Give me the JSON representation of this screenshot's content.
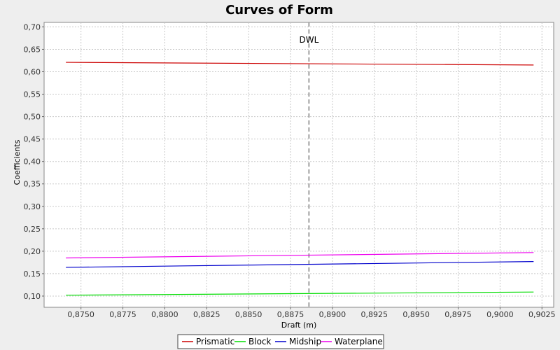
{
  "chart_data": {
    "type": "line",
    "title": "Curves of Form",
    "xlabel": "Draft (m)",
    "ylabel": "Coefficients",
    "xlim": [
      0.8728,
      0.9032
    ],
    "ylim": [
      0.075,
      0.71
    ],
    "x_ticks": [
      "0,8750",
      "0,8775",
      "0,8800",
      "0,8825",
      "0,8850",
      "0,8875",
      "0,8900",
      "0,8925",
      "0,8950",
      "0,8975",
      "0,9000",
      "0,9025"
    ],
    "x_tick_values": [
      0.875,
      0.8775,
      0.88,
      0.8825,
      0.885,
      0.8875,
      0.89,
      0.8925,
      0.895,
      0.8975,
      0.9,
      0.9025
    ],
    "y_ticks": [
      "0,10",
      "0,15",
      "0,20",
      "0,25",
      "0,30",
      "0,35",
      "0,40",
      "0,45",
      "0,50",
      "0,55",
      "0,60",
      "0,65",
      "0,70"
    ],
    "y_tick_values": [
      0.1,
      0.15,
      0.2,
      0.25,
      0.3,
      0.35,
      0.4,
      0.45,
      0.5,
      0.55,
      0.6,
      0.65,
      0.7
    ],
    "grid": true,
    "legend_position": "bottom",
    "marker": {
      "label": "DWL",
      "x": 0.8886
    },
    "series": [
      {
        "name": "Prismatic",
        "color": "#cc0000",
        "x": [
          0.8741,
          0.902
        ],
        "values": [
          0.621,
          0.615
        ]
      },
      {
        "name": "Block",
        "color": "#00dd00",
        "x": [
          0.8741,
          0.902
        ],
        "values": [
          0.102,
          0.109
        ]
      },
      {
        "name": "Midship",
        "color": "#0000cc",
        "x": [
          0.8741,
          0.902
        ],
        "values": [
          0.164,
          0.177
        ]
      },
      {
        "name": "Waterplane",
        "color": "#ee00ee",
        "x": [
          0.8741,
          0.902
        ],
        "values": [
          0.185,
          0.197
        ]
      }
    ]
  }
}
